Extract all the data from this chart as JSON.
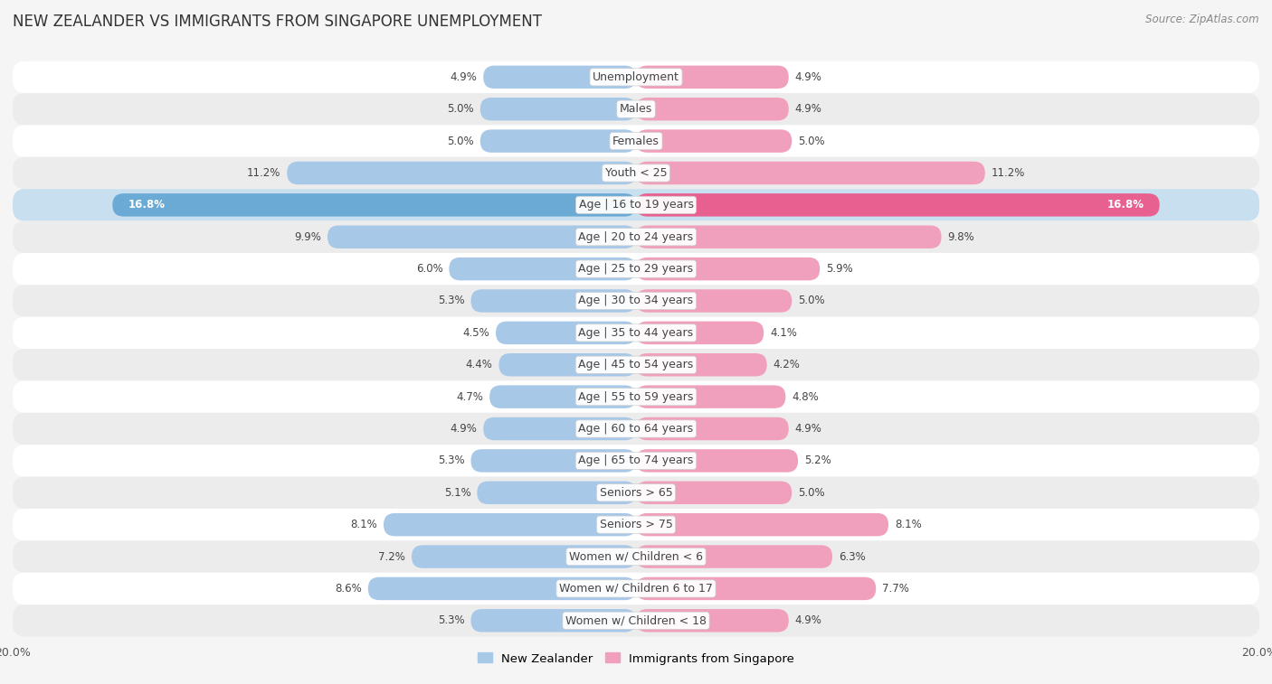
{
  "title": "NEW ZEALANDER VS IMMIGRANTS FROM SINGAPORE UNEMPLOYMENT",
  "source": "Source: ZipAtlas.com",
  "categories": [
    "Unemployment",
    "Males",
    "Females",
    "Youth < 25",
    "Age | 16 to 19 years",
    "Age | 20 to 24 years",
    "Age | 25 to 29 years",
    "Age | 30 to 34 years",
    "Age | 35 to 44 years",
    "Age | 45 to 54 years",
    "Age | 55 to 59 years",
    "Age | 60 to 64 years",
    "Age | 65 to 74 years",
    "Seniors > 65",
    "Seniors > 75",
    "Women w/ Children < 6",
    "Women w/ Children 6 to 17",
    "Women w/ Children < 18"
  ],
  "left_values": [
    4.9,
    5.0,
    5.0,
    11.2,
    16.8,
    9.9,
    6.0,
    5.3,
    4.5,
    4.4,
    4.7,
    4.9,
    5.3,
    5.1,
    8.1,
    7.2,
    8.6,
    5.3
  ],
  "right_values": [
    4.9,
    4.9,
    5.0,
    11.2,
    16.8,
    9.8,
    5.9,
    5.0,
    4.1,
    4.2,
    4.8,
    4.9,
    5.2,
    5.0,
    8.1,
    6.3,
    7.7,
    4.9
  ],
  "left_color": "#a8c8e8",
  "right_color": "#f0a0bc",
  "highlight_left_color": "#6aaad4",
  "highlight_right_color": "#e86090",
  "highlight_row": 4,
  "xmax": 20.0,
  "bg_color": "#f5f5f5",
  "row_even_color": "#ffffff",
  "row_odd_color": "#ececec",
  "row_highlight_color": "#c8dff0",
  "legend_left": "New Zealander",
  "legend_right": "Immigrants from Singapore",
  "title_fontsize": 12,
  "label_fontsize": 9,
  "value_fontsize": 8.5,
  "source_fontsize": 8.5
}
